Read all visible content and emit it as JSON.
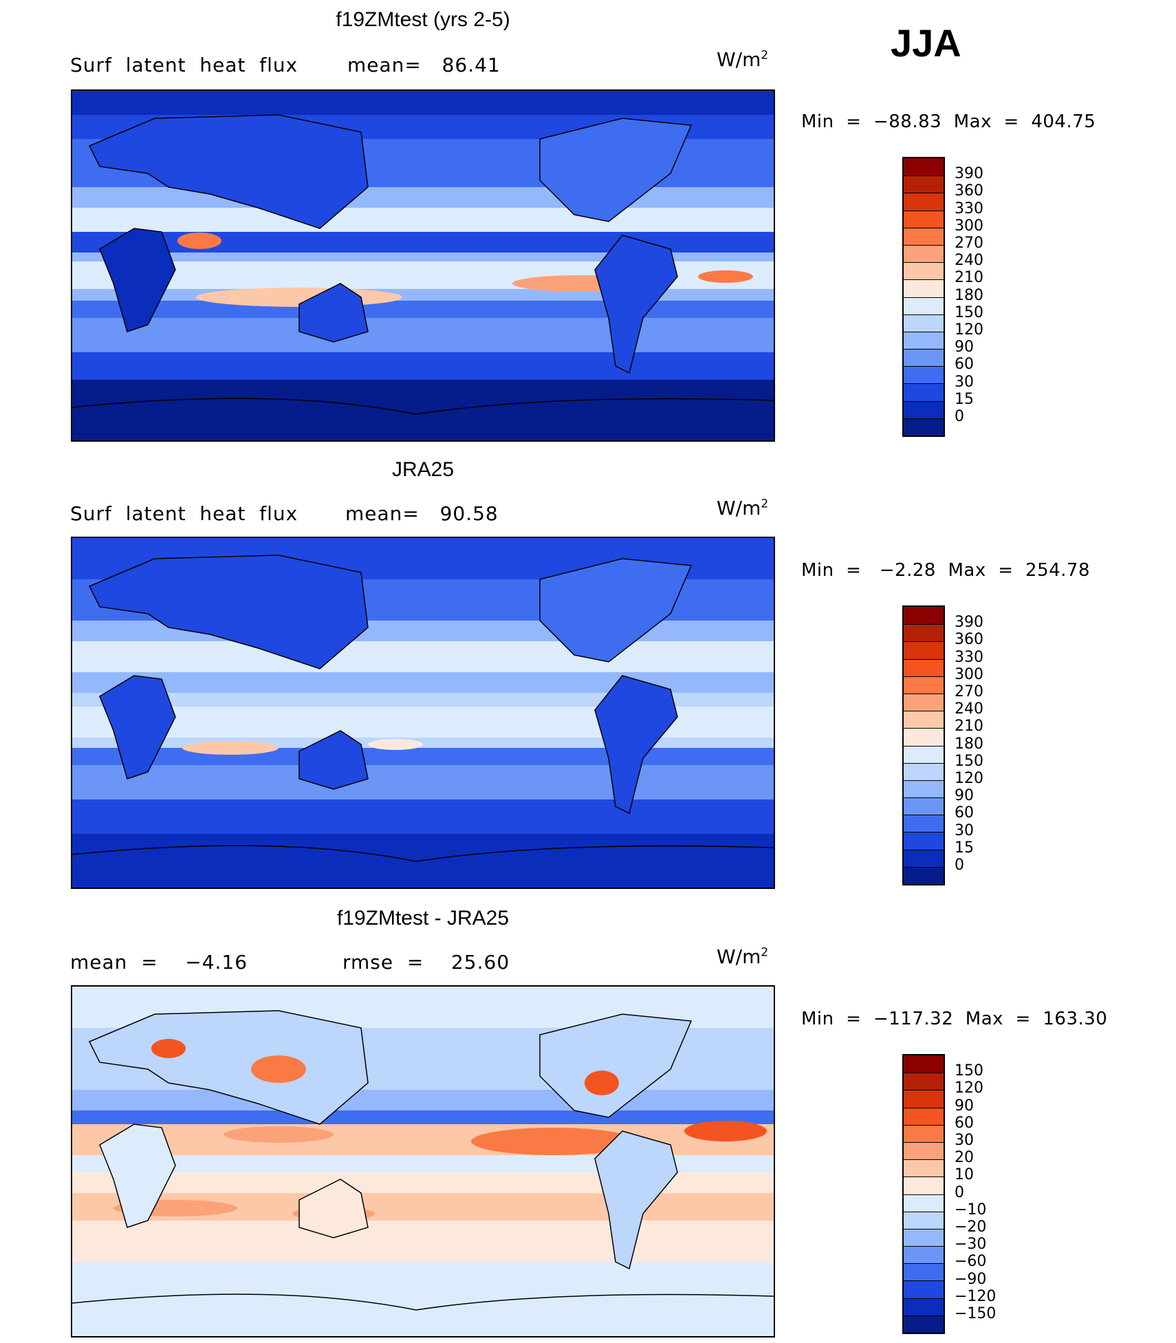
{
  "season": "JJA",
  "panels": [
    {
      "title": "f19ZMtest (yrs 2-5)",
      "left_label": "Surf  latent  heat  flux",
      "mid_label": "mean=   86.41",
      "units": "W/m",
      "units_sup": "2",
      "minmax": "Min  =  −88.83  Max  =  404.75",
      "colorbar_levels": [
        "390",
        "360",
        "330",
        "300",
        "270",
        "240",
        "210",
        "180",
        "150",
        "120",
        "90",
        "60",
        "30",
        "15",
        "0"
      ],
      "colorbar_colors": [
        "#8b0000",
        "#b52106",
        "#d8350a",
        "#f35420",
        "#fa7a45",
        "#fca27a",
        "#fdc8a8",
        "#fde9dc",
        "#dcecfd",
        "#bcd6fc",
        "#94b8fb",
        "#6b95f6",
        "#3f6df0",
        "#1f48e0",
        "#0b2dbc",
        "#051d8a"
      ]
    },
    {
      "title": "JRA25",
      "left_label": "Surf  latent  heat  flux",
      "mid_label": "mean=   90.58",
      "units": "W/m",
      "units_sup": "2",
      "minmax": "Min  =   −2.28  Max  =  254.78",
      "colorbar_levels": [
        "390",
        "360",
        "330",
        "300",
        "270",
        "240",
        "210",
        "180",
        "150",
        "120",
        "90",
        "60",
        "30",
        "15",
        "0"
      ],
      "colorbar_colors": [
        "#8b0000",
        "#b52106",
        "#d8350a",
        "#f35420",
        "#fa7a45",
        "#fca27a",
        "#fdc8a8",
        "#fde9dc",
        "#dcecfd",
        "#bcd6fc",
        "#94b8fb",
        "#6b95f6",
        "#3f6df0",
        "#1f48e0",
        "#0b2dbc",
        "#051d8a"
      ]
    },
    {
      "title": "f19ZMtest - JRA25",
      "left_label": "mean  =    −4.16",
      "mid_label": "rmse  =    25.60",
      "units": "W/m",
      "units_sup": "2",
      "minmax": "Min  =  −117.32  Max  =  163.30",
      "colorbar_levels": [
        "150",
        "120",
        "90",
        "60",
        "30",
        "20",
        "10",
        "0",
        "−10",
        "−20",
        "−30",
        "−60",
        "−90",
        "−120",
        "−150"
      ],
      "colorbar_colors": [
        "#8b0000",
        "#b52106",
        "#d8350a",
        "#f35420",
        "#fa7a45",
        "#fca27a",
        "#fdc8a8",
        "#fde9dc",
        "#dcecfd",
        "#bcd6fc",
        "#94b8fb",
        "#6b95f6",
        "#3f6df0",
        "#1f48e0",
        "#0b2dbc",
        "#051d8a"
      ]
    }
  ]
}
